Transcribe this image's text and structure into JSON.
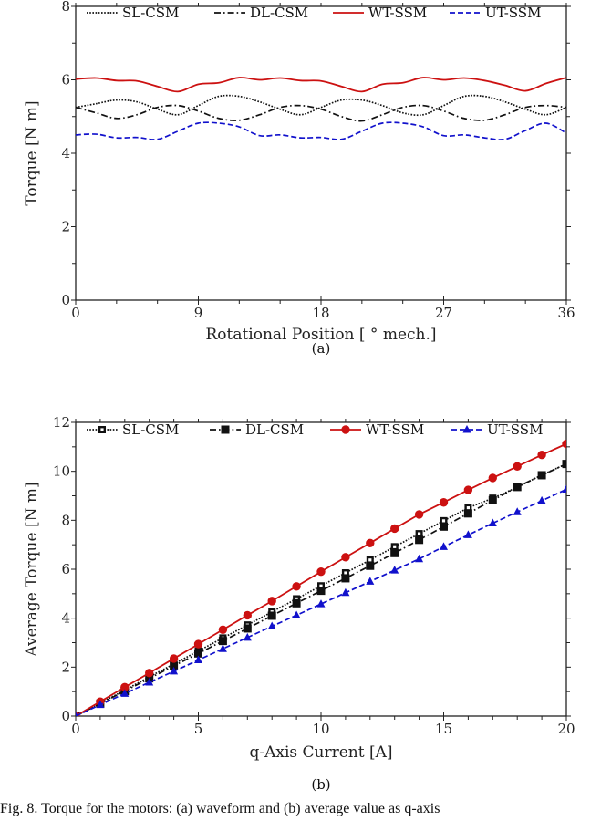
{
  "caption": "Fig. 8.  Torque for the motors: (a) waveform and (b) average value as q-axis",
  "chart_data": [
    {
      "id": "a",
      "type": "line",
      "sublabel": "(a)",
      "title": "",
      "xlabel": "Rotational Position [ ° mech.]",
      "ylabel": "Torque [N m]",
      "xlim": [
        0,
        36
      ],
      "ylim": [
        0,
        8
      ],
      "xticks": [
        0,
        9,
        18,
        27,
        36
      ],
      "xminor": [
        3,
        6,
        12,
        15,
        21,
        24,
        30,
        33
      ],
      "yticks": [
        0,
        2,
        4,
        6,
        8
      ],
      "yminor": [
        1,
        3,
        5,
        7
      ],
      "grid": false,
      "legend_position": "top",
      "x": [
        0,
        1.5,
        3,
        4.5,
        6,
        7.5,
        9,
        10.5,
        12,
        13.5,
        15,
        16.5,
        18,
        19.5,
        21,
        22.5,
        24,
        25.5,
        27,
        28.5,
        30,
        31.5,
        33,
        34.5,
        36
      ],
      "series": [
        {
          "name": "SL-CSM",
          "color": "#111111",
          "style": "dotted",
          "values": [
            5.25,
            5.35,
            5.45,
            5.4,
            5.2,
            5.05,
            5.3,
            5.55,
            5.55,
            5.4,
            5.2,
            5.05,
            5.25,
            5.45,
            5.45,
            5.3,
            5.1,
            5.05,
            5.3,
            5.55,
            5.55,
            5.4,
            5.2,
            5.05,
            5.25
          ]
        },
        {
          "name": "DL-CSM",
          "color": "#111111",
          "style": "dashdot",
          "values": [
            5.25,
            5.1,
            4.95,
            5.05,
            5.25,
            5.3,
            5.15,
            4.95,
            4.9,
            5.05,
            5.25,
            5.3,
            5.2,
            5.0,
            4.88,
            5.05,
            5.25,
            5.3,
            5.15,
            4.95,
            4.9,
            5.05,
            5.25,
            5.3,
            5.25
          ]
        },
        {
          "name": "WT-SSM",
          "color": "#cc1111",
          "style": "solid",
          "values": [
            6.02,
            6.05,
            5.98,
            5.97,
            5.82,
            5.68,
            5.88,
            5.92,
            6.06,
            6.0,
            6.05,
            5.98,
            5.97,
            5.82,
            5.68,
            5.88,
            5.92,
            6.06,
            6.0,
            6.05,
            5.98,
            5.85,
            5.7,
            5.9,
            6.06
          ]
        },
        {
          "name": "UT-SSM",
          "color": "#1111cc",
          "style": "dashed",
          "values": [
            4.5,
            4.52,
            4.42,
            4.43,
            4.38,
            4.6,
            4.82,
            4.82,
            4.72,
            4.48,
            4.5,
            4.42,
            4.43,
            4.38,
            4.6,
            4.82,
            4.82,
            4.72,
            4.48,
            4.5,
            4.42,
            4.38,
            4.62,
            4.82,
            4.55
          ]
        }
      ]
    },
    {
      "id": "b",
      "type": "line",
      "sublabel": "(b)",
      "title": "",
      "xlabel": "q-Axis Current [A]",
      "ylabel": "Average Torque [N m]",
      "xlim": [
        0,
        20
      ],
      "ylim": [
        0,
        12
      ],
      "xticks": [
        0,
        5,
        10,
        15,
        20
      ],
      "xminor": [
        1,
        2,
        3,
        4,
        6,
        7,
        8,
        9,
        11,
        12,
        13,
        14,
        16,
        17,
        18,
        19
      ],
      "yticks": [
        0,
        2,
        4,
        6,
        8,
        10,
        12
      ],
      "yminor": [
        1,
        3,
        5,
        7,
        9,
        11
      ],
      "grid": false,
      "legend_position": "top",
      "x": [
        0,
        1,
        2,
        3,
        4,
        5,
        6,
        7,
        8,
        9,
        10,
        11,
        12,
        13,
        14,
        15,
        16,
        17,
        18,
        19,
        20
      ],
      "series": [
        {
          "name": "SL-CSM",
          "color": "#111111",
          "style": "dotted",
          "marker": "square-open",
          "values": [
            0,
            0.53,
            1.06,
            1.6,
            2.13,
            2.66,
            3.19,
            3.72,
            4.26,
            4.79,
            5.32,
            5.85,
            6.38,
            6.92,
            7.45,
            7.98,
            8.51,
            8.9,
            9.35,
            9.85,
            10.3
          ]
        },
        {
          "name": "DL-CSM",
          "color": "#111111",
          "style": "dashdot",
          "marker": "square",
          "values": [
            0,
            0.51,
            1.02,
            1.54,
            2.05,
            2.56,
            3.07,
            3.58,
            4.1,
            4.61,
            5.12,
            5.63,
            6.14,
            6.66,
            7.2,
            7.74,
            8.28,
            8.82,
            9.36,
            9.84,
            10.3
          ]
        },
        {
          "name": "WT-SSM",
          "color": "#cc1111",
          "style": "solid",
          "marker": "circle",
          "values": [
            0,
            0.59,
            1.18,
            1.76,
            2.35,
            2.94,
            3.53,
            4.12,
            4.7,
            5.3,
            5.9,
            6.49,
            7.07,
            7.66,
            8.24,
            8.73,
            9.24,
            9.73,
            10.2,
            10.67,
            11.12
          ]
        },
        {
          "name": "UT-SSM",
          "color": "#1111cc",
          "style": "dashed",
          "marker": "triangle",
          "values": [
            0,
            0.46,
            0.92,
            1.38,
            1.83,
            2.29,
            2.75,
            3.21,
            3.67,
            4.12,
            4.58,
            5.04,
            5.5,
            5.96,
            6.42,
            6.92,
            7.4,
            7.88,
            8.34,
            8.8,
            9.26
          ]
        }
      ]
    }
  ]
}
